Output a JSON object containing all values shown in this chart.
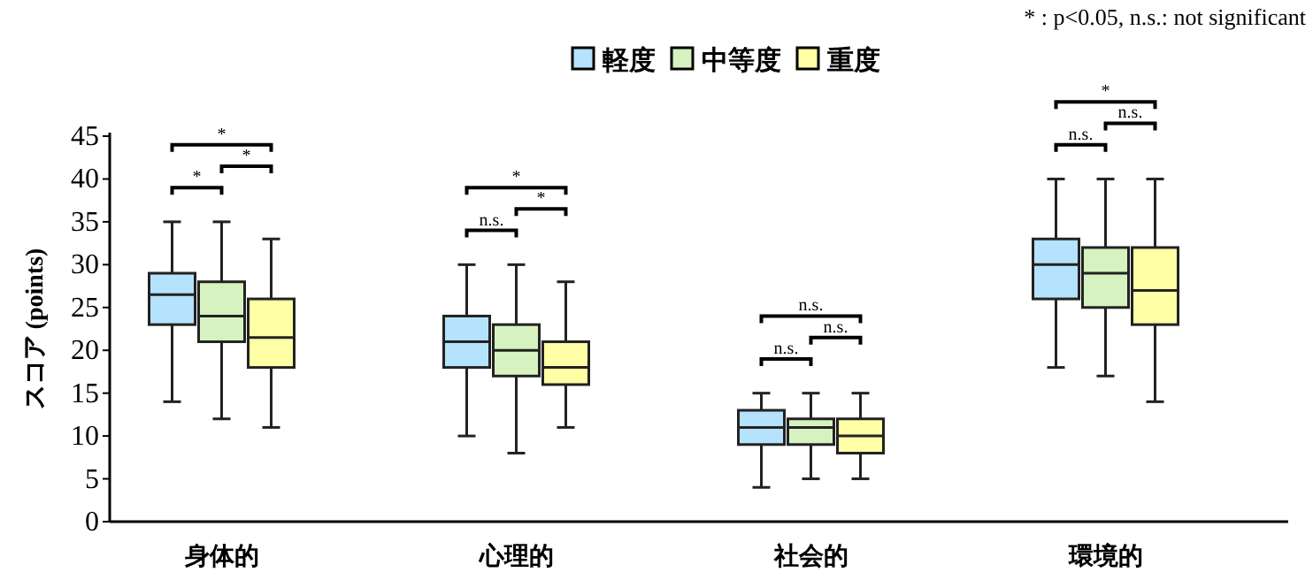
{
  "chart_data": {
    "type": "box",
    "ylabel": "スコア (points)",
    "categories": [
      "身体的",
      "心理的",
      "社会的",
      "環境的"
    ],
    "series": [
      {
        "name": "軽度",
        "color": "#b5e2fc",
        "boxes": [
          {
            "low": 14,
            "q1": 23,
            "median": 26.5,
            "q3": 29,
            "high": 35
          },
          {
            "low": 10,
            "q1": 18,
            "median": 21,
            "q3": 24,
            "high": 30
          },
          {
            "low": 4,
            "q1": 9,
            "median": 11,
            "q3": 13,
            "high": 15
          },
          {
            "low": 18,
            "q1": 26,
            "median": 30,
            "q3": 33,
            "high": 40
          }
        ]
      },
      {
        "name": "中等度",
        "color": "#d6f2c0",
        "boxes": [
          {
            "low": 12,
            "q1": 21,
            "median": 24,
            "q3": 28,
            "high": 35
          },
          {
            "low": 8,
            "q1": 17,
            "median": 20,
            "q3": 23,
            "high": 30
          },
          {
            "low": 5,
            "q1": 9,
            "median": 11,
            "q3": 12,
            "high": 15
          },
          {
            "low": 17,
            "q1": 25,
            "median": 29,
            "q3": 32,
            "high": 40
          }
        ]
      },
      {
        "name": "重度",
        "color": "#ffffa6",
        "boxes": [
          {
            "low": 11,
            "q1": 18,
            "median": 21.5,
            "q3": 26,
            "high": 33
          },
          {
            "low": 11,
            "q1": 16,
            "median": 18,
            "q3": 21,
            "high": 28
          },
          {
            "low": 5,
            "q1": 8,
            "median": 10,
            "q3": 12,
            "high": 15
          },
          {
            "low": 14,
            "q1": 23,
            "median": 27,
            "q3": 32,
            "high": 40
          }
        ]
      }
    ],
    "ylim": [
      0,
      45
    ],
    "yticks": [
      0,
      5,
      10,
      15,
      20,
      25,
      30,
      35,
      40,
      45
    ],
    "grid": false,
    "legend": "top",
    "annotations": [
      "*",
      "*",
      "*",
      "n.s.",
      "*",
      "*",
      "n.s.",
      "n.s.",
      "n.s.",
      "n.s.",
      "n.s.",
      "*",
      "* : p<0.05, n.s.: not significant"
    ]
  }
}
